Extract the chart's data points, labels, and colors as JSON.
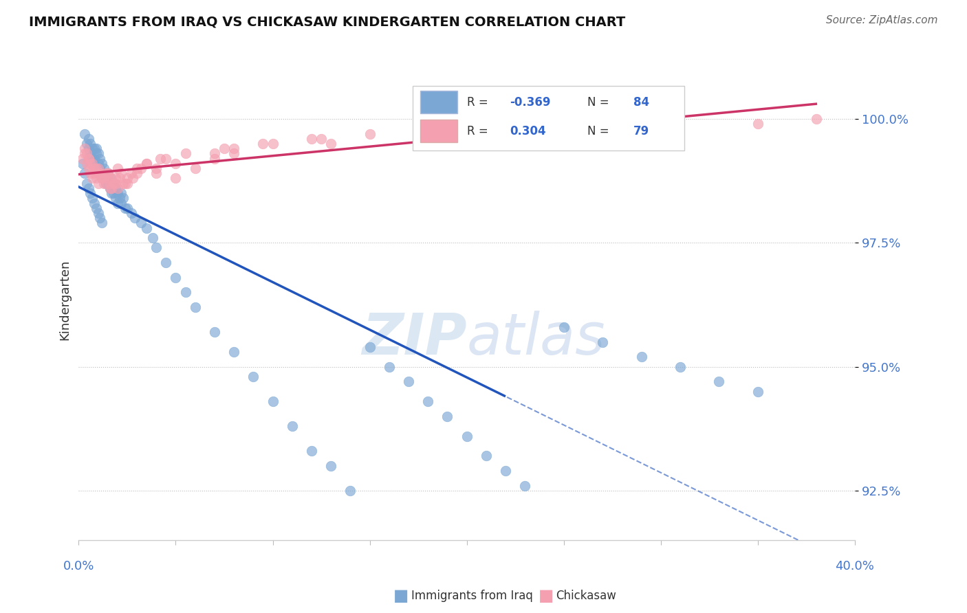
{
  "title": "IMMIGRANTS FROM IRAQ VS CHICKASAW KINDERGARTEN CORRELATION CHART",
  "source_text": "Source: ZipAtlas.com",
  "ylabel": "Kindergarten",
  "ytick_labels": [
    "92.5%",
    "95.0%",
    "97.5%",
    "100.0%"
  ],
  "ytick_values": [
    92.5,
    95.0,
    97.5,
    100.0
  ],
  "xlim": [
    0.0,
    40.0
  ],
  "ylim": [
    91.5,
    101.2
  ],
  "R_blue": -0.369,
  "N_blue": 84,
  "R_pink": 0.304,
  "N_pink": 79,
  "blue_color": "#7ba7d4",
  "pink_color": "#f4a0b0",
  "trend_blue": "#2255bb",
  "trend_pink": "#cc3366",
  "watermark_color": "#ccdded",
  "blue_scatter_x": [
    0.2,
    0.3,
    0.3,
    0.4,
    0.4,
    0.5,
    0.5,
    0.5,
    0.6,
    0.6,
    0.6,
    0.7,
    0.7,
    0.7,
    0.8,
    0.8,
    0.8,
    0.9,
    0.9,
    0.9,
    1.0,
    1.0,
    1.0,
    1.1,
    1.1,
    1.1,
    1.2,
    1.2,
    1.2,
    1.3,
    1.3,
    1.4,
    1.4,
    1.5,
    1.5,
    1.6,
    1.6,
    1.7,
    1.7,
    1.8,
    1.8,
    1.9,
    1.9,
    2.0,
    2.0,
    2.1,
    2.2,
    2.2,
    2.3,
    2.4,
    2.5,
    2.7,
    2.9,
    3.2,
    3.5,
    3.8,
    4.0,
    4.5,
    5.0,
    5.5,
    6.0,
    7.0,
    8.0,
    9.0,
    10.0,
    11.0,
    12.0,
    13.0,
    14.0,
    15.0,
    16.0,
    17.0,
    18.0,
    19.0,
    20.0,
    21.0,
    22.0,
    23.0,
    25.0,
    27.0,
    29.0,
    31.0,
    33.0,
    35.0
  ],
  "blue_scatter_y": [
    99.1,
    99.7,
    98.9,
    99.5,
    98.7,
    99.6,
    99.4,
    98.6,
    99.5,
    99.3,
    98.5,
    99.4,
    99.2,
    98.4,
    99.4,
    99.2,
    98.3,
    99.4,
    99.3,
    98.2,
    99.3,
    99.1,
    98.1,
    99.2,
    99.0,
    98.0,
    99.1,
    98.9,
    97.9,
    99.0,
    98.8,
    98.9,
    98.7,
    98.9,
    98.7,
    98.8,
    98.6,
    98.7,
    98.5,
    98.7,
    98.5,
    98.6,
    98.4,
    98.5,
    98.3,
    98.4,
    98.5,
    98.3,
    98.4,
    98.2,
    98.2,
    98.1,
    98.0,
    97.9,
    97.8,
    97.6,
    97.4,
    97.1,
    96.8,
    96.5,
    96.2,
    95.7,
    95.3,
    94.8,
    94.3,
    93.8,
    93.3,
    93.0,
    92.5,
    95.4,
    95.0,
    94.7,
    94.3,
    94.0,
    93.6,
    93.2,
    92.9,
    92.6,
    95.8,
    95.5,
    95.2,
    95.0,
    94.7,
    94.5
  ],
  "pink_scatter_x": [
    0.2,
    0.3,
    0.4,
    0.5,
    0.6,
    0.7,
    0.8,
    0.9,
    1.0,
    1.1,
    1.2,
    1.3,
    1.4,
    1.5,
    1.6,
    1.7,
    1.8,
    1.9,
    2.0,
    2.2,
    2.5,
    2.8,
    3.2,
    3.5,
    4.0,
    4.5,
    5.0,
    6.0,
    7.0,
    8.0,
    10.0,
    12.0,
    15.0,
    18.0,
    22.0,
    28.0,
    35.0,
    38.0,
    0.3,
    0.5,
    0.7,
    0.9,
    1.1,
    1.3,
    1.5,
    1.7,
    1.9,
    2.1,
    2.4,
    2.7,
    3.0,
    3.5,
    4.2,
    5.5,
    7.5,
    9.5,
    12.5,
    0.4,
    0.6,
    0.8,
    1.0,
    1.2,
    1.4,
    1.6,
    1.8,
    2.0,
    2.3,
    3.0,
    5.0,
    8.0,
    13.0,
    20.0,
    30.0,
    0.5,
    1.0,
    1.5,
    2.5,
    4.0,
    7.0
  ],
  "pink_scatter_y": [
    99.2,
    99.3,
    99.1,
    99.0,
    98.9,
    98.8,
    98.9,
    98.8,
    98.7,
    98.9,
    98.8,
    98.7,
    98.9,
    98.8,
    98.7,
    98.6,
    98.7,
    98.8,
    99.0,
    98.9,
    98.7,
    98.8,
    99.0,
    99.1,
    98.9,
    99.2,
    98.8,
    99.0,
    99.3,
    99.4,
    99.5,
    99.6,
    99.7,
    99.8,
    99.9,
    100.0,
    99.9,
    100.0,
    99.4,
    99.2,
    99.1,
    99.0,
    98.9,
    98.8,
    98.9,
    98.8,
    98.7,
    98.8,
    98.7,
    98.9,
    99.0,
    99.1,
    99.2,
    99.3,
    99.4,
    99.5,
    99.6,
    99.3,
    99.1,
    99.0,
    98.9,
    98.8,
    98.7,
    98.6,
    98.7,
    98.6,
    98.7,
    98.9,
    99.1,
    99.3,
    99.5,
    99.7,
    99.8,
    99.2,
    99.0,
    98.9,
    98.8,
    99.0,
    99.2
  ]
}
